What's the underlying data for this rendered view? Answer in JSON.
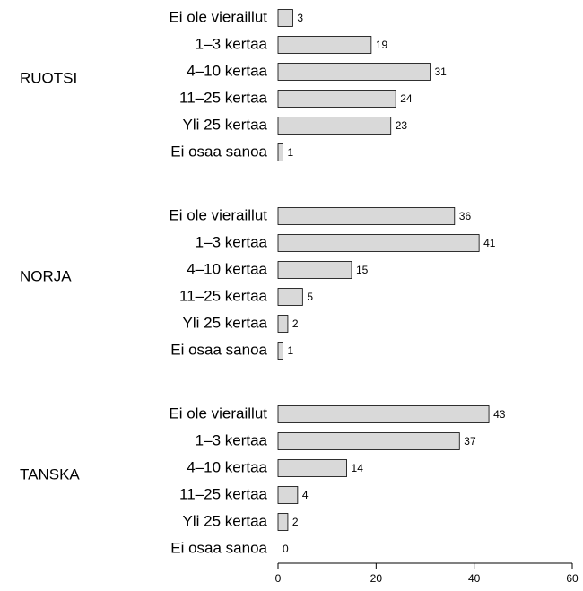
{
  "chart_data": {
    "type": "bar",
    "orientation": "horizontal",
    "categories": [
      "Ei ole vieraillut",
      "1–3 kertaa",
      "4–10 kertaa",
      "11–25 kertaa",
      "Yli 25 kertaa",
      "Ei osaa sanoa"
    ],
    "groups": [
      {
        "name": "RUOTSI",
        "values": [
          3,
          19,
          31,
          24,
          23,
          1
        ]
      },
      {
        "name": "NORJA",
        "values": [
          36,
          41,
          15,
          5,
          2,
          1
        ]
      },
      {
        "name": "TANSKA",
        "values": [
          43,
          37,
          14,
          4,
          2,
          0
        ]
      }
    ],
    "color": "#d9d9d9",
    "xlim": [
      0,
      60
    ],
    "xticks": [
      0,
      20,
      40,
      60
    ]
  }
}
